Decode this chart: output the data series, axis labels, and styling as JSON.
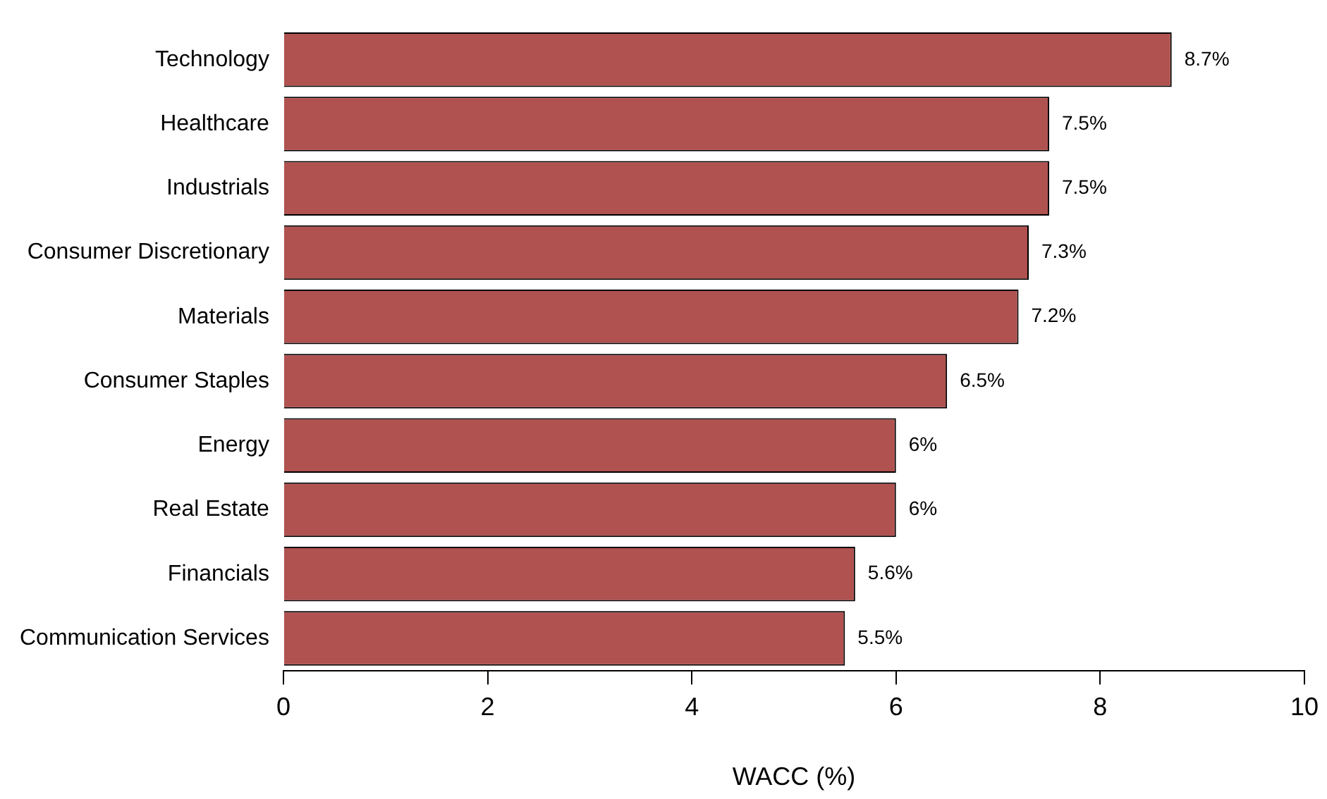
{
  "chart_data": {
    "type": "bar",
    "orientation": "horizontal",
    "xlabel": "WACC (%)",
    "categories": [
      "Technology",
      "Healthcare",
      "Industrials",
      "Consumer Discretionary",
      "Materials",
      "Consumer Staples",
      "Energy",
      "Real Estate",
      "Financials",
      "Communication Services"
    ],
    "values": [
      8.7,
      7.5,
      7.5,
      7.3,
      7.2,
      6.5,
      6,
      6,
      5.6,
      5.5
    ],
    "value_labels": [
      "8.7%",
      "7.5%",
      "7.5%",
      "7.3%",
      "7.2%",
      "6.5%",
      "6%",
      "6%",
      "5.6%",
      "5.5%"
    ],
    "color": "#b05250",
    "xlim": [
      0,
      10
    ],
    "xticks": [
      0,
      2,
      4,
      6,
      8,
      10
    ],
    "grid": false,
    "legend": false
  }
}
